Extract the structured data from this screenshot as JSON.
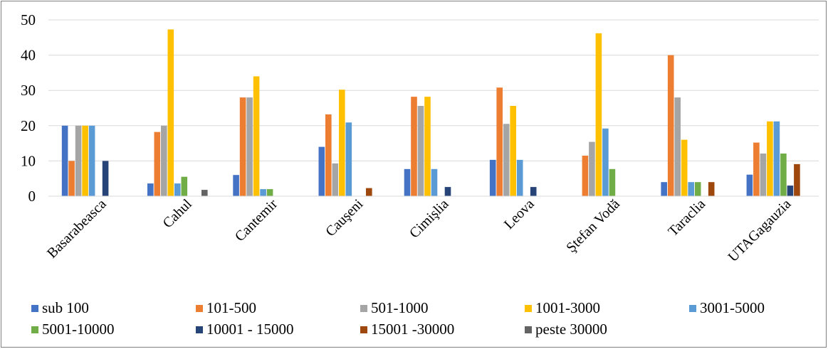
{
  "chart_data": {
    "type": "bar",
    "title": "",
    "xlabel": "",
    "ylabel": "",
    "ylim": [
      0,
      50
    ],
    "yticks": [
      0,
      10,
      20,
      30,
      40,
      50
    ],
    "grid": true,
    "legend_position": "bottom",
    "categories": [
      "Basarabeasca",
      "Cahul",
      "Cantemir",
      "Cauşeni",
      "Cimişlia",
      "Leova",
      "Ştefan Vodă",
      "Taraclia",
      "UTAGagauzia"
    ],
    "series": [
      {
        "name": "sub 100",
        "color": "#4472C4",
        "values": [
          20,
          3.6,
          6,
          14,
          7.7,
          10.3,
          0,
          4,
          6.1
        ]
      },
      {
        "name": "101-500",
        "color": "#ED7D31",
        "values": [
          10,
          18.2,
          28,
          23.2,
          28.2,
          30.8,
          11.5,
          40,
          15.2
        ]
      },
      {
        "name": "501-1000",
        "color": "#A5A5A5",
        "values": [
          20,
          20,
          28,
          9.3,
          25.6,
          20.5,
          15.4,
          28,
          12.1
        ]
      },
      {
        "name": "1001-3000",
        "color": "#FFC000",
        "values": [
          20,
          47.3,
          34,
          30.2,
          28.2,
          25.6,
          46.2,
          16,
          21.2
        ]
      },
      {
        "name": "3001-5000",
        "color": "#5B9BD5",
        "values": [
          20,
          3.6,
          2,
          20.9,
          7.7,
          10.3,
          19.2,
          4,
          21.2
        ]
      },
      {
        "name": "5001-10000",
        "color": "#70AD47",
        "values": [
          0,
          5.5,
          2,
          0,
          0,
          0,
          7.7,
          4,
          12.1
        ]
      },
      {
        "name": "10001 - 15000",
        "color": "#264478",
        "values": [
          10,
          0,
          0,
          0,
          2.6,
          2.6,
          0,
          0,
          3
        ]
      },
      {
        "name": "15001 -30000",
        "color": "#9E480E",
        "values": [
          0,
          0,
          0,
          2.3,
          0,
          0,
          0,
          4,
          9.1
        ]
      },
      {
        "name": "peste 30000",
        "color": "#636363",
        "values": [
          0,
          1.8,
          0,
          0,
          0,
          0,
          0,
          0,
          0
        ]
      }
    ]
  }
}
